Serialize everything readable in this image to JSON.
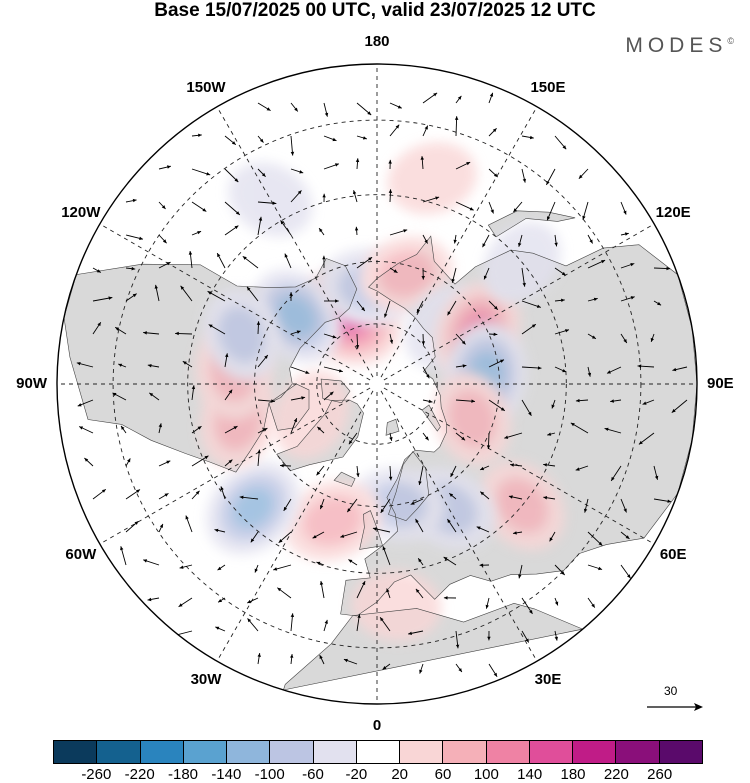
{
  "title": "Base 15/07/2025 00 UTC, valid 23/07/2025 12 UTC",
  "brand": "MODES",
  "brand_mark": "©",
  "map": {
    "projection": "north-polar-stereographic",
    "longitude_labels": [
      {
        "text": "180",
        "lon": 180
      },
      {
        "text": "150E",
        "lon": 150
      },
      {
        "text": "120E",
        "lon": 120
      },
      {
        "text": "90E",
        "lon": 90
      },
      {
        "text": "60E",
        "lon": 60
      },
      {
        "text": "30E",
        "lon": 30
      },
      {
        "text": "0",
        "lon": 0
      },
      {
        "text": "30W",
        "lon": -30
      },
      {
        "text": "60W",
        "lon": -60
      },
      {
        "text": "90W",
        "lon": -90
      },
      {
        "text": "120W",
        "lon": -120
      },
      {
        "text": "150W",
        "lon": -150
      }
    ],
    "latitude_circles": [
      30,
      45,
      60,
      75
    ],
    "graticule": "dashed",
    "land_color": "#d9d9d9",
    "anomaly_centers": [
      {
        "lon": -155,
        "lat": 72,
        "value": 175
      },
      {
        "lon": -130,
        "lat": 64,
        "value": -110
      },
      {
        "lon": -175,
        "lat": 66,
        "value": -90
      },
      {
        "lon": 165,
        "lat": 62,
        "value": 60
      },
      {
        "lon": 130,
        "lat": 68,
        "value": -50
      },
      {
        "lon": 118,
        "lat": 62,
        "value": 110
      },
      {
        "lon": 95,
        "lat": 63,
        "value": -120
      },
      {
        "lon": 70,
        "lat": 65,
        "value": 70
      },
      {
        "lon": 50,
        "lat": 45,
        "value": 80
      },
      {
        "lon": 30,
        "lat": 55,
        "value": -80
      },
      {
        "lon": 10,
        "lat": 60,
        "value": -60
      },
      {
        "lon": -18,
        "lat": 55,
        "value": 90
      },
      {
        "lon": -45,
        "lat": 48,
        "value": -120
      },
      {
        "lon": -75,
        "lat": 55,
        "value": 70
      },
      {
        "lon": -95,
        "lat": 55,
        "value": 80
      },
      {
        "lon": -110,
        "lat": 55,
        "value": -60
      },
      {
        "lon": -65,
        "lat": 72,
        "value": 50
      },
      {
        "lon": 5,
        "lat": 38,
        "value": 40
      },
      {
        "lon": 130,
        "lat": 45,
        "value": -30
      },
      {
        "lon": -150,
        "lat": 40,
        "value": -30
      },
      {
        "lon": 165,
        "lat": 40,
        "value": 40
      }
    ]
  },
  "colorbar": {
    "ticks": [
      "-260",
      "-220",
      "-180",
      "-140",
      "-100",
      "-60",
      "-20",
      "20",
      "60",
      "100",
      "140",
      "180",
      "220",
      "260"
    ],
    "colors": [
      "#0b3a5c",
      "#14618f",
      "#2a84be",
      "#5aa2d0",
      "#8fb6dc",
      "#bcc5e3",
      "#e2e1ef",
      "#ffffff",
      "#f9d6d6",
      "#f5b0b8",
      "#ef82a4",
      "#e04e9a",
      "#c01c87",
      "#8a0f7a",
      "#5a0a6b"
    ]
  },
  "wind_scale": {
    "label": "30"
  }
}
